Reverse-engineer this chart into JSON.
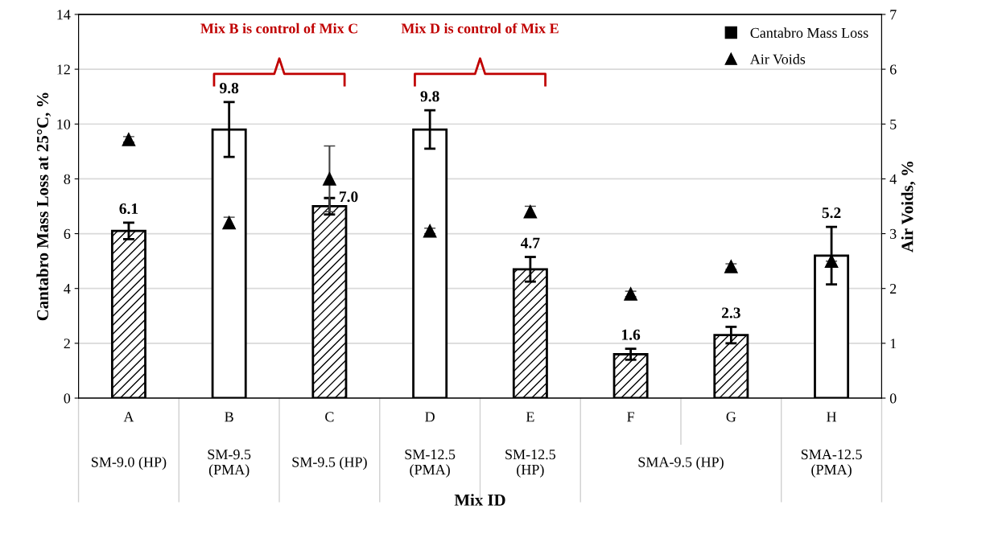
{
  "chart_data": {
    "type": "bar",
    "xlabel": "Mix ID",
    "ylabel": "Cantabro Mass Loss at 25°C, %",
    "y2label": "Air Voids, %",
    "categories": [
      "A",
      "B",
      "C",
      "D",
      "E",
      "F",
      "G",
      "H"
    ],
    "series": [
      {
        "name": "Cantabro Mass Loss",
        "colors": [
          "#000000",
          "#ffffff",
          "#000000",
          "#ffffff",
          "#000000",
          "#000000",
          "#000000",
          "#ffffff"
        ],
        "color": "#000000",
        "values": [
          6.1,
          9.8,
          7.0,
          9.8,
          4.7,
          1.6,
          2.3,
          5.2
        ],
        "errors": [
          0.3,
          1.0,
          0.3,
          0.7,
          0.45,
          0.2,
          0.3,
          1.05
        ],
        "value_labels": [
          "6.1",
          "9.8",
          "7.0",
          "9.8",
          "4.7",
          "1.6",
          "2.3",
          "5.2"
        ]
      },
      {
        "name": "Air Voids",
        "type": "scatter",
        "axis": "y2",
        "color": "#000000",
        "marker": "triangle",
        "values": [
          4.72,
          3.2,
          4.0,
          3.05,
          3.4,
          1.9,
          2.4,
          2.5
        ],
        "errors": [
          0.05,
          0.1,
          0.6,
          0.05,
          0.1,
          0.05,
          0.05,
          null
        ]
      }
    ],
    "ylim": [
      0,
      14
    ],
    "yticks": [
      0,
      2,
      4,
      6,
      8,
      10,
      12,
      14
    ],
    "y2lim": [
      0,
      7
    ],
    "y2ticks": [
      0,
      1,
      2,
      3,
      4,
      5,
      6,
      7
    ],
    "grid": "y",
    "legend": "top right",
    "annotations": [
      "SM-9.0 (HP)",
      "SM-9.5\n(PMA)",
      "SM-9.5 (HP)",
      "SM-12.5\n(PMA)",
      "SM-12.5\n(HP)",
      "SMA-9.5 (HP)",
      "SMA-12.5\n(PMA)",
      "Mix B is control of Mix C",
      "Mix D is control of Mix E"
    ]
  }
}
